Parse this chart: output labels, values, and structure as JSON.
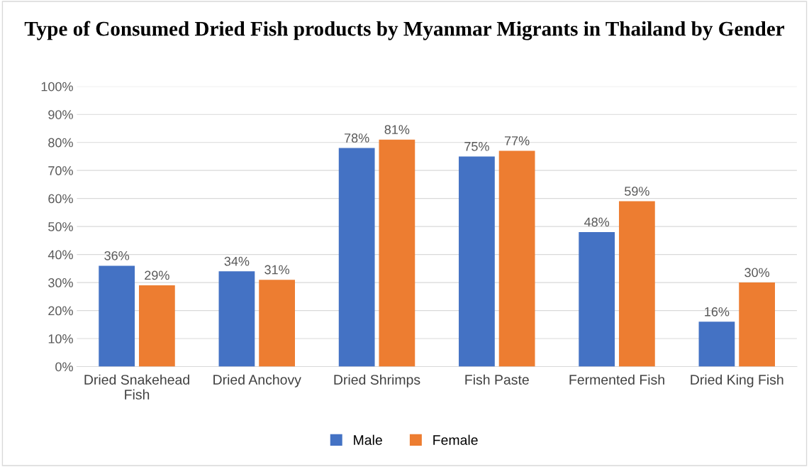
{
  "chart_data": {
    "type": "bar",
    "title": "Type of Consumed Dried Fish products by Myanmar Migrants in Thailand by Gender",
    "categories": [
      "Dried Snakehead\nFish",
      "Dried Anchovy",
      "Dried Shrimps",
      "Fish Paste",
      "Fermented Fish",
      "Dried King Fish"
    ],
    "series": [
      {
        "name": "Male",
        "color": "#4472c4",
        "values": [
          36,
          34,
          78,
          75,
          48,
          16
        ],
        "value_labels": [
          "36%",
          "34%",
          "78%",
          "75%",
          "48%",
          "16%"
        ]
      },
      {
        "name": "Female",
        "color": "#ed7d31",
        "values": [
          29,
          31,
          81,
          77,
          59,
          30
        ],
        "value_labels": [
          "29%",
          "31%",
          "81%",
          "77%",
          "59%",
          "30%"
        ]
      }
    ],
    "ylim": [
      0,
      100
    ],
    "yticks": [
      {
        "value": 0,
        "label": "0%"
      },
      {
        "value": 10,
        "label": "10%"
      },
      {
        "value": 20,
        "label": "20%"
      },
      {
        "value": 30,
        "label": "30%"
      },
      {
        "value": 40,
        "label": "40%"
      },
      {
        "value": 50,
        "label": "50%"
      },
      {
        "value": 60,
        "label": "60%"
      },
      {
        "value": 70,
        "label": "70%"
      },
      {
        "value": 80,
        "label": "80%"
      },
      {
        "value": 90,
        "label": "90%"
      },
      {
        "value": 100,
        "label": "100%"
      }
    ],
    "grid": "y",
    "legend": "bottom"
  }
}
